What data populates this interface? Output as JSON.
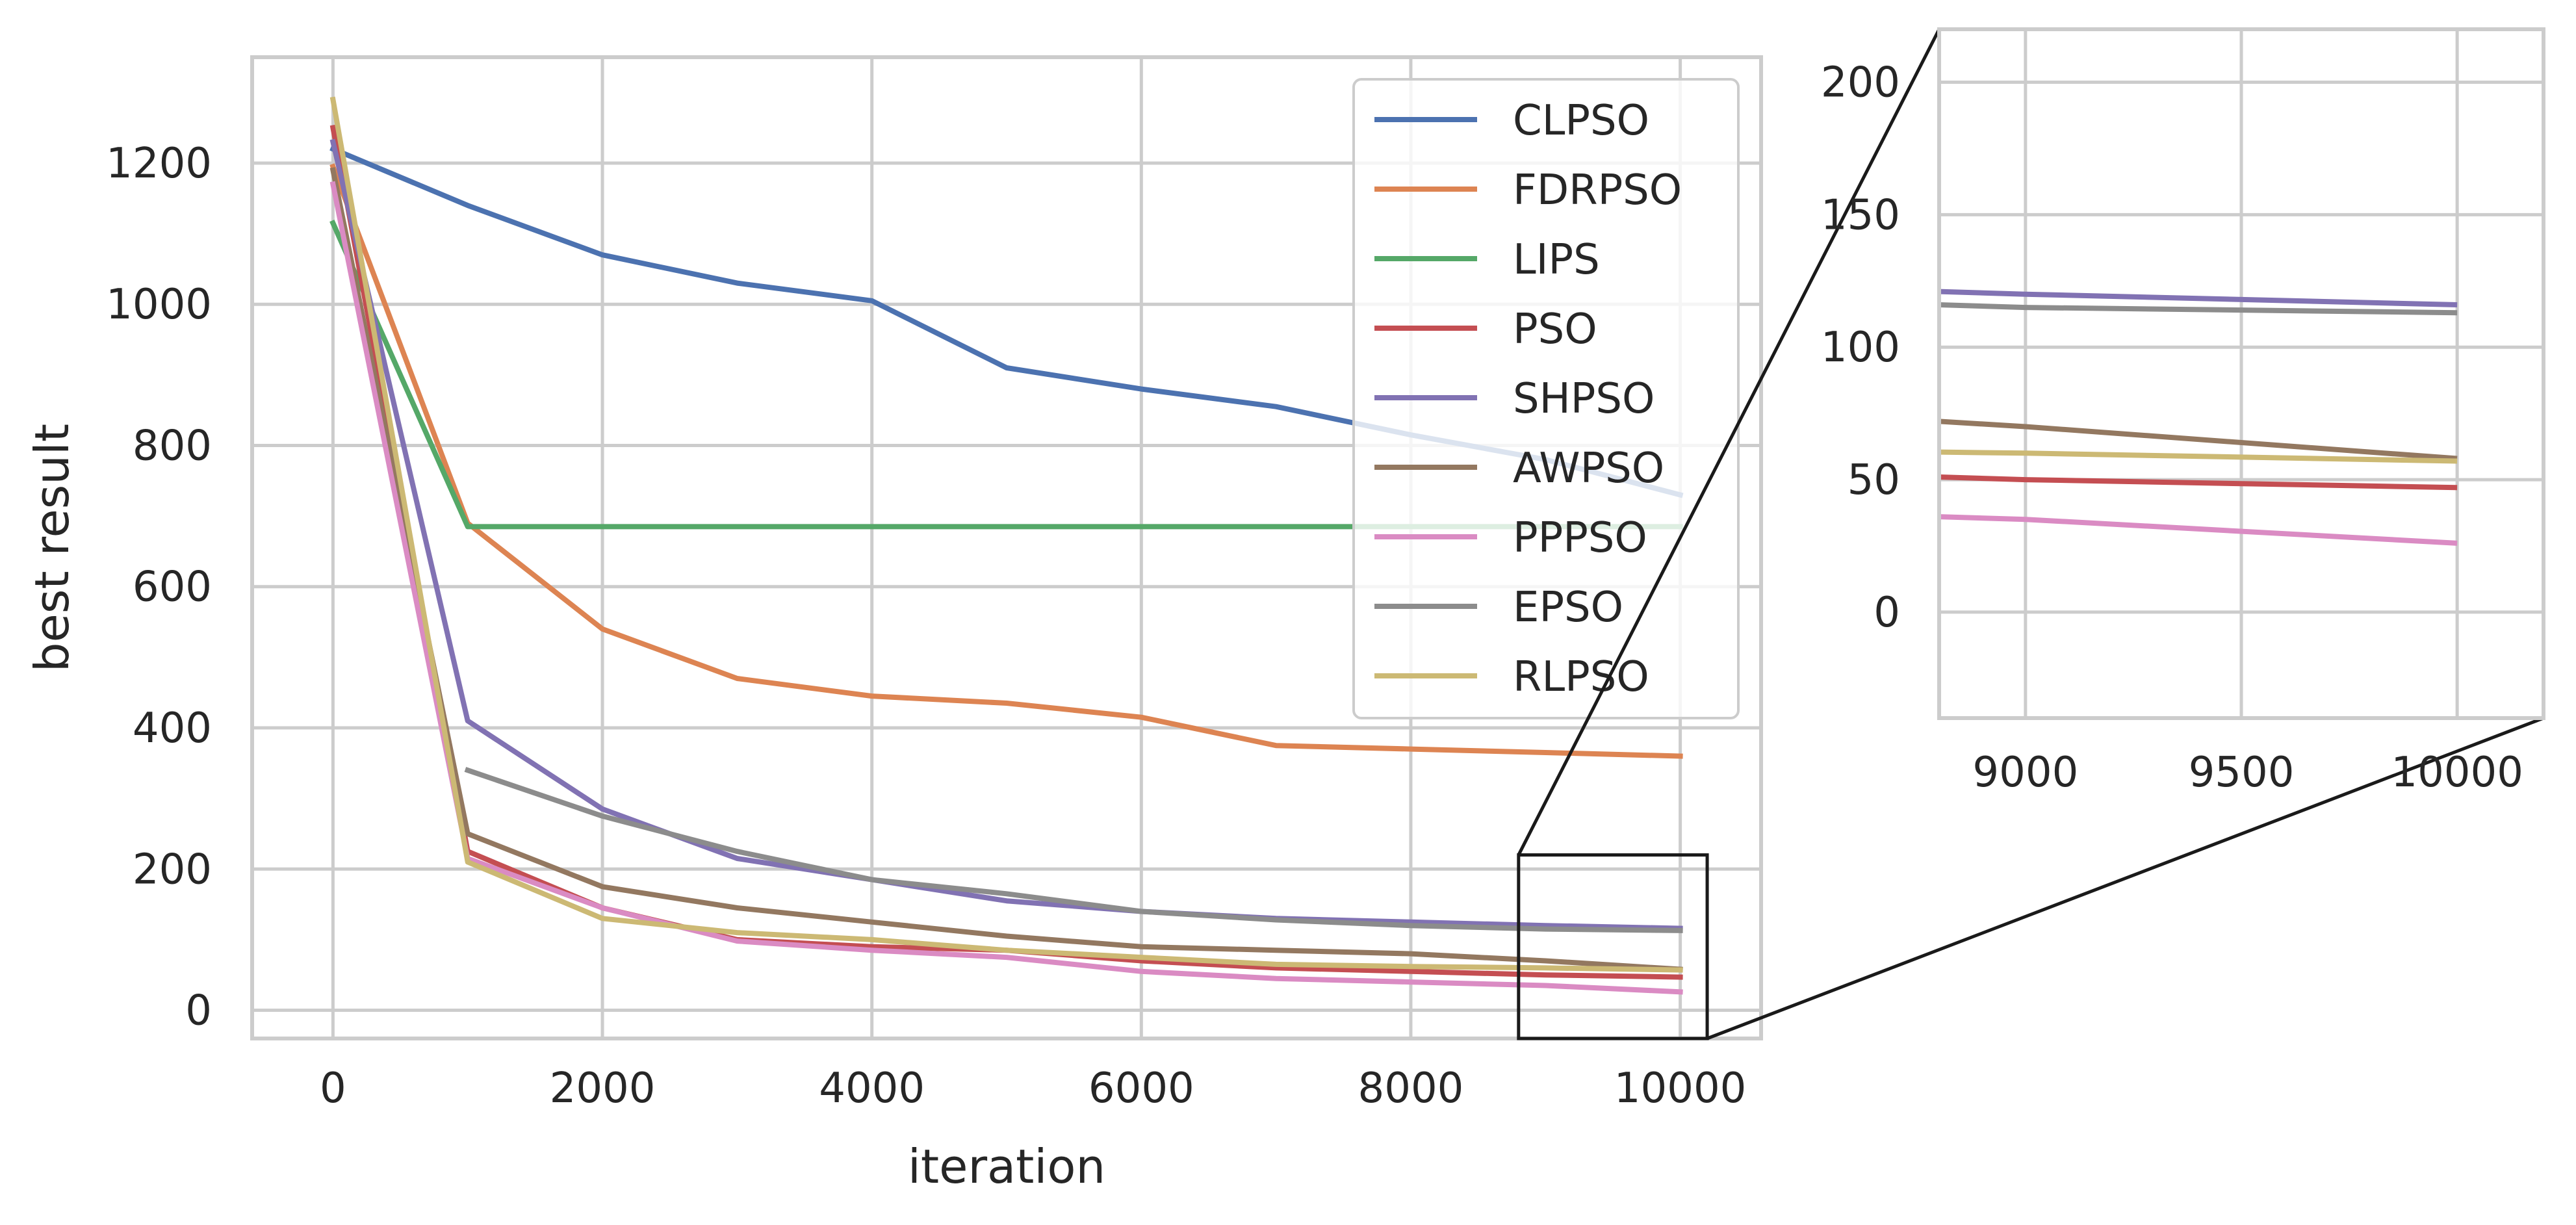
{
  "chart_data": {
    "type": "line",
    "xlabel": "iteration",
    "ylabel": "best result",
    "xlim": [
      -600,
      10600
    ],
    "ylim": [
      -40,
      1350
    ],
    "xticks": [
      "0",
      "2000",
      "4000",
      "6000",
      "8000",
      "10000"
    ],
    "yticks": [
      "0",
      "200",
      "400",
      "600",
      "800",
      "1000",
      "1200"
    ],
    "grid": true,
    "legend_position": "top-right",
    "series": [
      {
        "name": "CLPSO",
        "color": "#4c72b0",
        "x": [
          0,
          1000,
          2000,
          3000,
          4000,
          5000,
          6000,
          7000,
          8000,
          9000,
          10000
        ],
        "y": [
          1220,
          1140,
          1070,
          1030,
          1005,
          910,
          880,
          855,
          815,
          780,
          730
        ]
      },
      {
        "name": "FDRPSO",
        "color": "#dd8452",
        "x": [
          0,
          1000,
          2000,
          3000,
          4000,
          5000,
          6000,
          7000,
          8000,
          9000,
          10000
        ],
        "y": [
          1195,
          690,
          540,
          470,
          445,
          435,
          415,
          375,
          370,
          365,
          360
        ]
      },
      {
        "name": "LIPS",
        "color": "#55a868",
        "x": [
          0,
          1000,
          2000,
          3000,
          4000,
          5000,
          6000,
          7000,
          8000,
          9000,
          10000
        ],
        "y": [
          1115,
          685,
          685,
          685,
          685,
          685,
          685,
          685,
          685,
          685,
          685
        ]
      },
      {
        "name": "PSO",
        "color": "#c44e52",
        "x": [
          0,
          1000,
          2000,
          3000,
          4000,
          5000,
          6000,
          7000,
          8000,
          9000,
          10000
        ],
        "y": [
          1250,
          225,
          145,
          100,
          90,
          85,
          70,
          60,
          55,
          50,
          47
        ]
      },
      {
        "name": "SHPSO",
        "color": "#8172b3",
        "x": [
          0,
          1000,
          2000,
          3000,
          4000,
          5000,
          6000,
          7000,
          8000,
          9000,
          10000
        ],
        "y": [
          1230,
          410,
          285,
          215,
          185,
          155,
          140,
          130,
          125,
          120,
          116
        ]
      },
      {
        "name": "AWPSO",
        "color": "#937860",
        "x": [
          0,
          1000,
          2000,
          3000,
          4000,
          5000,
          6000,
          7000,
          8000,
          9000,
          10000
        ],
        "y": [
          1190,
          250,
          175,
          145,
          125,
          105,
          90,
          85,
          80,
          70,
          58
        ]
      },
      {
        "name": "PPPSO",
        "color": "#da8bc3",
        "x": [
          0,
          1000,
          2000,
          3000,
          4000,
          5000,
          6000,
          7000,
          8000,
          9000,
          10000
        ],
        "y": [
          1170,
          215,
          145,
          98,
          85,
          75,
          55,
          45,
          40,
          35,
          26
        ]
      },
      {
        "name": "EPSO",
        "color": "#8c8c8c",
        "x": [
          1000,
          2000,
          3000,
          4000,
          5000,
          6000,
          7000,
          8000,
          9000,
          10000
        ],
        "y": [
          340,
          275,
          225,
          185,
          165,
          140,
          128,
          120,
          115,
          113
        ]
      },
      {
        "name": "RLPSO",
        "color": "#ccb974",
        "x": [
          0,
          1000,
          2000,
          3000,
          4000,
          5000,
          6000,
          7000,
          8000,
          9000,
          10000
        ],
        "y": [
          1290,
          210,
          130,
          110,
          100,
          85,
          75,
          65,
          62,
          60,
          57
        ]
      }
    ],
    "inset": {
      "xlim": [
        8800,
        10200
      ],
      "ylim": [
        -40,
        220
      ],
      "xticks": [
        "9000",
        "9500",
        "10000"
      ],
      "yticks": [
        "0",
        "50",
        "100",
        "150",
        "200"
      ]
    }
  }
}
